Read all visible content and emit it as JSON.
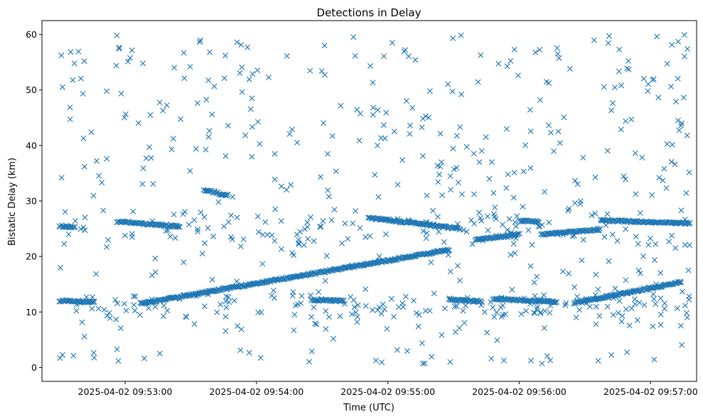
{
  "chart_data": {
    "type": "scatter",
    "title": "Detections in Delay",
    "xlabel": "Time (UTC)",
    "ylabel": "Bistatic Delay (km)",
    "marker": "x",
    "color": "#1f77b4",
    "xlim": [
      "2025-04-02 09:52:22",
      "2025-04-02 09:57:21"
    ],
    "ylim": [
      -2.5,
      62.5
    ],
    "xticks": [
      "2025-04-02 09:53:00",
      "2025-04-02 09:54:00",
      "2025-04-02 09:55:00",
      "2025-04-02 09:56:00",
      "2025-04-02 09:57:00"
    ],
    "yticks": [
      0,
      10,
      20,
      30,
      40,
      50,
      60
    ],
    "x_unit": "seconds after 2025-04-02 09:52:22",
    "x_span_s": 299,
    "tracks": [
      {
        "name": "rising track",
        "t_start_s": 45,
        "t_end_s": 186,
        "delay_start_km": 11.5,
        "delay_end_km": 21.2
      },
      {
        "name": "lower track",
        "t_start_s": 243,
        "t_end_s": 292,
        "delay_start_km": 11.6,
        "delay_end_km": 15.4
      },
      {
        "name": "12 km segment A",
        "t_start_s": 8,
        "t_end_s": 24,
        "delay_start_km": 12.0,
        "delay_end_km": 11.8
      },
      {
        "name": "12 km segment B",
        "t_start_s": 123,
        "t_end_s": 138,
        "delay_start_km": 12.2,
        "delay_end_km": 12.0
      },
      {
        "name": "12 km segment C",
        "t_start_s": 186,
        "t_end_s": 201,
        "delay_start_km": 12.2,
        "delay_end_km": 11.9
      },
      {
        "name": "12 km segment D",
        "t_start_s": 206,
        "t_end_s": 235,
        "delay_start_km": 12.4,
        "delay_end_km": 11.8
      },
      {
        "name": "25 km segment A",
        "t_start_s": 8,
        "t_end_s": 15,
        "delay_start_km": 25.5,
        "delay_end_km": 25.3
      },
      {
        "name": "25 km segment B",
        "t_start_s": 34,
        "t_end_s": 63,
        "delay_start_km": 26.3,
        "delay_end_km": 25.4
      },
      {
        "name": "25 km segment C",
        "t_start_s": 149,
        "t_end_s": 191,
        "delay_start_km": 27.0,
        "delay_end_km": 25.0
      },
      {
        "name": "25 km segment D",
        "t_start_s": 198,
        "t_end_s": 218,
        "delay_start_km": 23.0,
        "delay_end_km": 24.0
      },
      {
        "name": "25 km segment E",
        "t_start_s": 218,
        "t_end_s": 227,
        "delay_start_km": 26.4,
        "delay_end_km": 26.3
      },
      {
        "name": "25 km segment F",
        "t_start_s": 228,
        "t_end_s": 255,
        "delay_start_km": 24.0,
        "delay_end_km": 24.9
      },
      {
        "name": "25 km segment G",
        "t_start_s": 255,
        "t_end_s": 296,
        "delay_start_km": 26.5,
        "delay_end_km": 26.0
      },
      {
        "name": "31 km segment",
        "t_start_s": 74,
        "t_end_s": 85,
        "delay_start_km": 32.0,
        "delay_end_km": 31.0
      }
    ],
    "clutter": {
      "delay_range_km": [
        0.5,
        60
      ],
      "approx_count": 700
    },
    "n_points": 1536
  }
}
